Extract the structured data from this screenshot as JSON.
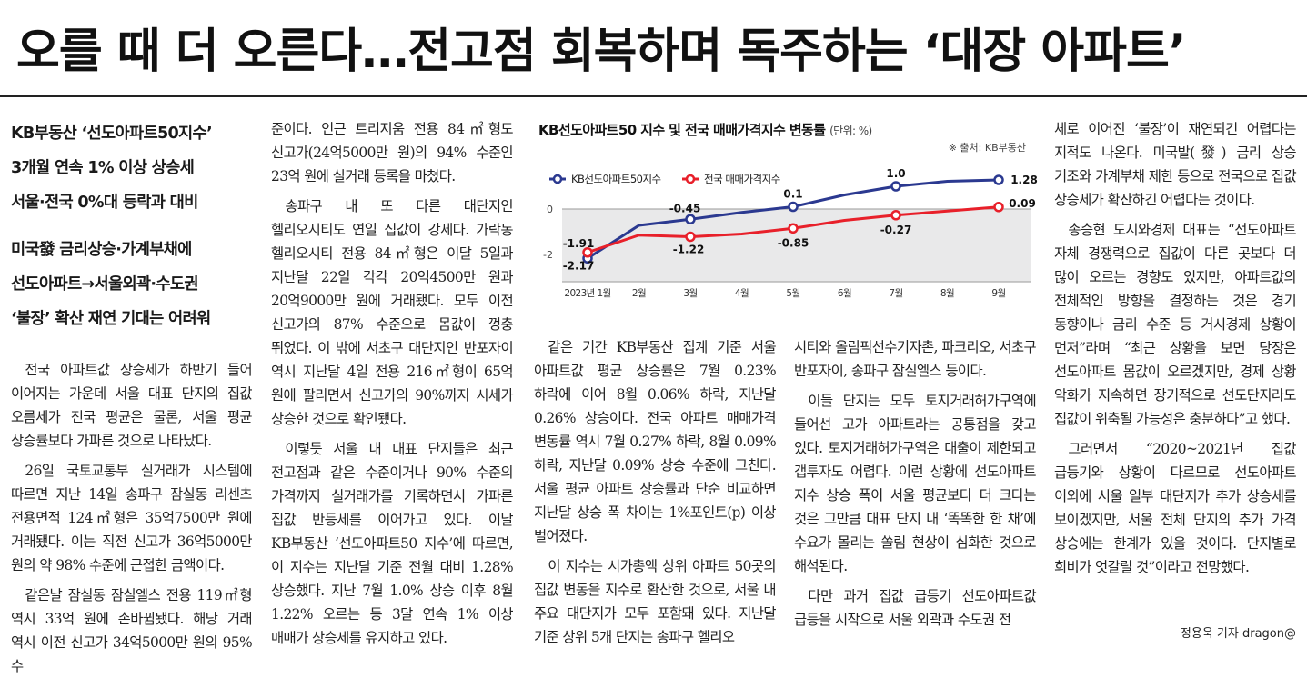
{
  "headline": "오를 때 더 오른다…전고점 회복하며 독주하는 ‘대장 아파트’",
  "subheads_1": [
    "KB부동산 ‘선도아파트50지수’",
    "3개월 연속 1% 이상 상승세",
    "서울·전국 0%대 등락과 대비"
  ],
  "subheads_2": [
    "미국發 금리상승·가계부채에",
    "선도아파트→서울외곽·수도권",
    "‘불장’ 확산 재연 기대는 어려워"
  ],
  "col1": [
    "전국 아파트값 상승세가 하반기 들어 이어지는 가운데 서울 대표 단지의 집값 오름세가 전국 평균은 물론, 서울 평균 상승률보다 가파른 것으로 나타났다.",
    "26일 국토교통부 실거래가 시스템에 따르면 지난 14일 송파구 잠실동 리센츠 전용면적 124㎡형은 35억7500만 원에 거래됐다. 이는 직전 신고가 36억5000만 원의 약 98% 수준에 근접한 금액이다.",
    "같은날 잠실동 잠실엘스 전용 119㎡형 역시 33억 원에 손바뀜됐다. 해당 거래 역시 이전 신고가 34억5000만 원의 95% 수"
  ],
  "col2": [
    "준이다. 인근 트리지움 전용 84㎡형도 신고가(24억5000만 원)의 94% 수준인 23억 원에 실거래 등록을 마쳤다.",
    "송파구 내 또 다른 대단지인 헬리오시티도 연일 집값이 강세다. 가락동 헬리오시티 전용 84㎡형은 이달 5일과 지난달 22일 각각 20억4500만 원과 20억9000만 원에 거래됐다. 모두 이전 신고가의 87% 수준으로 몸값이 껑충 뛰었다. 이 밖에 서초구 대단지인 반포자이 역시 지난달 4일 전용 216㎡형이 65억 원에 팔리면서 신고가의 90%까지 시세가 상승한 것으로 확인됐다.",
    "이렇듯 서울 내 대표 단지들은 최근 전고점과 같은 수준이거나 90% 수준의 가격까지 실거래가를 기록하면서 가파른 집값 반등세를 이어가고 있다. 이날 KB부동산 ‘선도아파트50 지수’에 따르면, 이 지수는 지난달 기준 전월 대비 1.28% 상승했다. 지난 7월 1.0% 상승 이후 8월 1.22% 오르는 등 3달 연속 1% 이상 매매가 상승세를 유지하고 있다."
  ],
  "col3": [
    "같은 기간 KB부동산 집계 기준 서울 아파트값 평균 상승률은 7월 0.23% 하락에 이어 8월 0.06% 하락, 지난달 0.26% 상승이다. 전국 아파트 매매가격 변동률 역시 7월 0.27% 하락, 8월 0.09% 하락, 지난달 0.09% 상승 수준에 그친다. 서울 평균 아파트 상승률과 단순 비교하면 지난달 상승 폭 차이는 1%포인트(p) 이상 벌어졌다.",
    "이 지수는 시가총액 상위 아파트 50곳의 집값 변동을 지수로 환산한 것으로, 서울 내 주요 대단지가 모두 포함돼 있다. 지난달 기준 상위 5개 단지는 송파구 헬리오"
  ],
  "col4": [
    "시티와 올림픽선수기자촌, 파크리오, 서초구 반포자이, 송파구 잠실엘스 등이다.",
    "이들 단지는 모두 토지거래허가구역에 들어선 고가 아파트라는 공통점을 갖고 있다. 토지거래허가구역은 대출이 제한되고 갭투자도 어렵다. 이런 상황에 선도아파트 지수 상승 폭이 서울 평균보다 더 크다는 것은 그만큼 대표 단지 내 ‘똑똑한 한 채’에 수요가 몰리는 쏠림 현상이 심화한 것으로 해석된다.",
    "다만 과거 집값 급등기 선도아파트값 급등을 시작으로 서울 외곽과 수도권 전"
  ],
  "col5": [
    "체로 이어진 ‘불장’이 재연되긴 어렵다는 지적도 나온다. 미국발(發) 금리 상승 기조와 가계부채 제한 등으로 전국으로 집값 상승세가 확산하긴 어렵다는 것이다.",
    "송승현 도시와경제 대표는 “선도아파트 자체 경쟁력으로 집값이 다른 곳보다 더 많이 오르는 경향도 있지만, 아파트값의 전체적인 방향을 결정하는 것은 경기 동향이나 금리 수준 등 거시경제 상황이 먼저”라며 “최근 상황을 보면 당장은 선도아파트 몸값이 오르겠지만, 경제 상황 악화가 지속하면 장기적으로 선도단지라도 집값이 위축될 가능성은 충분하다”고 했다.",
    "그러면서 “2020~2021년 집값 급등기와 상황이 다르므로 선도아파트 이외에 서울 일부 대단지가 추가 상승세를 보이겠지만, 서울 전체 단지의 추가 가격 상승에는 한계가 있을 것이다. 단지별로 희비가 엇갈릴 것”이라고 전망했다."
  ],
  "byline": "정용욱 기자 dragon@",
  "chart": {
    "title": "KB선도아파트50 지수 및 전국 매매가격지수 변동률",
    "unit": "(단위: %)",
    "source": "※ 출처: KB부동산"
  },
  "chart_data": {
    "type": "line",
    "title": "KB선도아파트50 지수 및 전국 매매가격지수 변동률",
    "ylabel": "(단위: %)",
    "x": [
      "2023년 1월",
      "2월",
      "3월",
      "4월",
      "5월",
      "6월",
      "7월",
      "8월",
      "9월"
    ],
    "yticks": [
      "0",
      "-2"
    ],
    "ylim": [
      -2.6,
      1.6
    ],
    "grid": false,
    "legend_position": "top-left",
    "series": [
      {
        "name": "KB선도아파트50지수",
        "color": "#2b3990",
        "values": [
          -2.17,
          -0.72,
          -0.45,
          -0.15,
          0.1,
          0.62,
          1.0,
          1.22,
          1.28
        ],
        "labels": [
          "-2.17",
          "",
          "-0.45",
          "",
          "0.1",
          "",
          "1.0",
          "",
          "1.28"
        ]
      },
      {
        "name": "전국 매매가격지수",
        "color": "#e8202a",
        "values": [
          -1.91,
          -1.15,
          -1.22,
          -1.1,
          -0.85,
          -0.5,
          -0.27,
          -0.09,
          0.09
        ],
        "labels": [
          "-1.91",
          "",
          "-1.22",
          "",
          "-0.85",
          "",
          "-0.27",
          "",
          "0.09"
        ]
      }
    ]
  }
}
